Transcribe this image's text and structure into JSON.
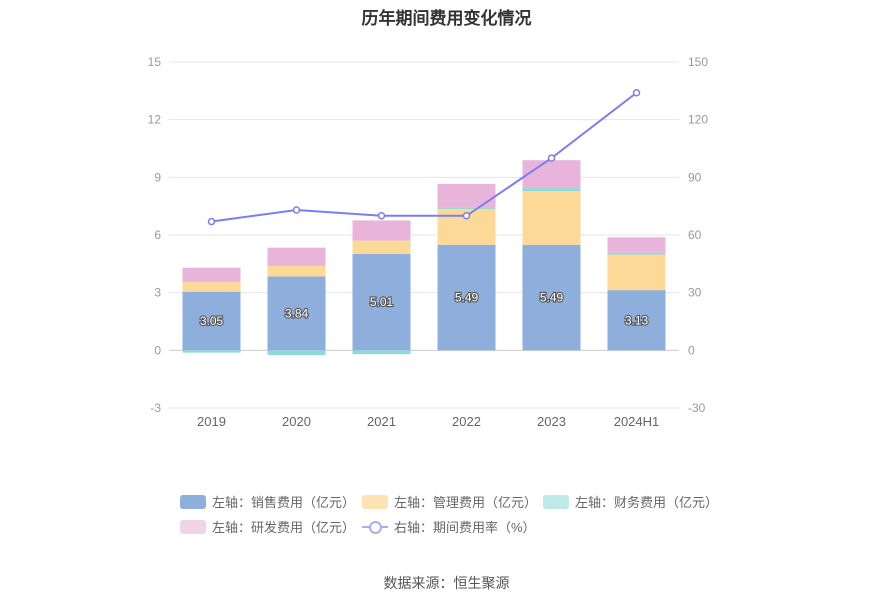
{
  "chart_data": {
    "type": "bar",
    "title": "历年期间费用变化情况",
    "categories": [
      "2019",
      "2020",
      "2021",
      "2022",
      "2023",
      "2024H1"
    ],
    "y_left": {
      "ylim": [
        -3,
        15
      ],
      "ticks": [
        "15",
        "12",
        "9",
        "6",
        "3",
        "0",
        "-3"
      ]
    },
    "y_right": {
      "ylim": [
        -30,
        150
      ],
      "ticks": [
        "150",
        "120",
        "90",
        "60",
        "30",
        "0",
        "-30"
      ]
    },
    "series": [
      {
        "name": "左轴：销售费用（亿元）",
        "kind": "bar",
        "color": "#8eaedb",
        "values": [
          3.05,
          3.84,
          5.01,
          5.49,
          5.49,
          3.13
        ],
        "labels": [
          "3.05",
          "3.84",
          "5.01",
          "5.49",
          "5.49",
          "3.13"
        ]
      },
      {
        "name": "左轴：管理费用（亿元）",
        "kind": "bar",
        "color": "#fdd998",
        "values": [
          0.5,
          0.55,
          0.7,
          1.9,
          2.8,
          1.85
        ]
      },
      {
        "name": "左轴：财务费用（亿元）",
        "kind": "bar",
        "color": "#8fdad8",
        "values": [
          -0.12,
          -0.25,
          -0.2,
          0.02,
          0.15,
          0.1
        ]
      },
      {
        "name": "左轴：研发费用（亿元）",
        "kind": "bar",
        "color": "#e8b4da",
        "values": [
          0.75,
          0.95,
          1.05,
          1.25,
          1.45,
          0.8
        ]
      },
      {
        "name": "右轴：期间费用率（%）",
        "kind": "line",
        "color": "#7b7ef0",
        "values": [
          67,
          73,
          70,
          70,
          100,
          134
        ]
      }
    ],
    "legend": "bottom",
    "grid": true
  },
  "source": "数据来源：恒生聚源"
}
